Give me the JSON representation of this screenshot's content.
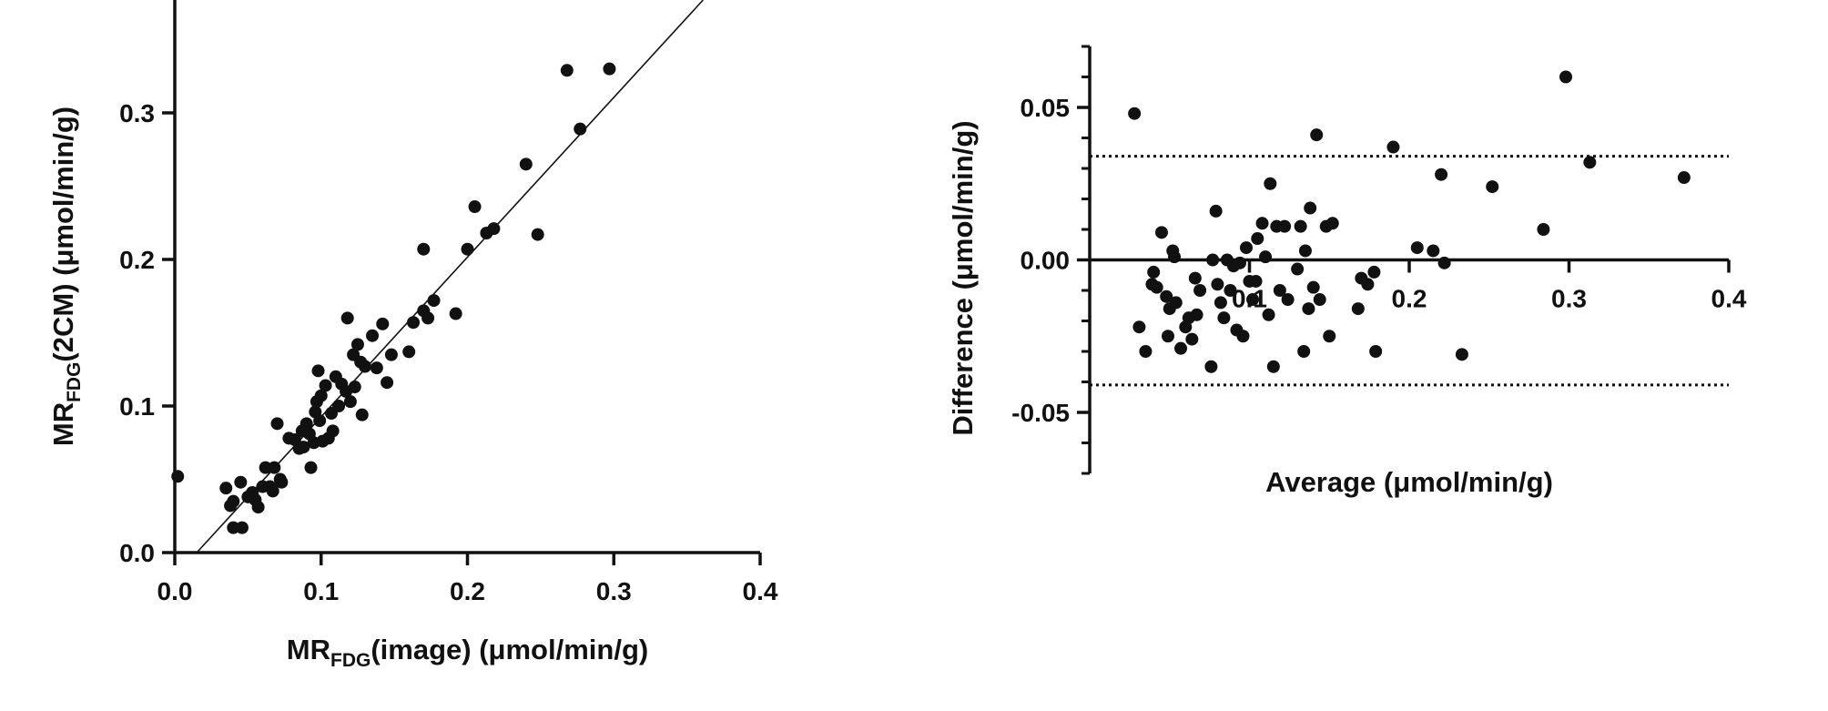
{
  "chart_data": [
    {
      "type": "scatter",
      "xlabel": {
        "main": "MR",
        "sub": "FDG",
        "rest": "(image) (μmol/min/g)"
      },
      "ylabel": {
        "main": "MR",
        "sub": "FDG",
        "rest": "(2CM) (μmol/min/g)"
      },
      "xlim": [
        0,
        0.4
      ],
      "ylim": [
        0,
        0.377
      ],
      "xticks": [
        {
          "value": 0,
          "label": "0.0"
        },
        0.1,
        0.2,
        0.3,
        0.4
      ],
      "yticks": [
        {
          "value": 0,
          "label": "0.0"
        },
        0.1,
        0.2,
        0.3
      ],
      "color": "#111111",
      "fit_line": {
        "x": [
          0.015,
          0.361
        ],
        "y": [
          0,
          0.377
        ]
      },
      "x": [
        0.002,
        0.035,
        0.038,
        0.04,
        0.04,
        0.045,
        0.046,
        0.05,
        0.053,
        0.055,
        0.057,
        0.06,
        0.062,
        0.065,
        0.067,
        0.068,
        0.07,
        0.072,
        0.073,
        0.078,
        0.082,
        0.085,
        0.087,
        0.088,
        0.09,
        0.092,
        0.093,
        0.095,
        0.096,
        0.097,
        0.098,
        0.099,
        0.1,
        0.101,
        0.103,
        0.105,
        0.107,
        0.108,
        0.11,
        0.112,
        0.114,
        0.117,
        0.118,
        0.12,
        0.122,
        0.123,
        0.125,
        0.127,
        0.128,
        0.13,
        0.135,
        0.138,
        0.142,
        0.145,
        0.148,
        0.16,
        0.163,
        0.17,
        0.17,
        0.173,
        0.177,
        0.192,
        0.2,
        0.205,
        0.213,
        0.218,
        0.24,
        0.248,
        0.268,
        0.277,
        0.297
      ],
      "y": [
        0.052,
        0.044,
        0.032,
        0.035,
        0.017,
        0.048,
        0.017,
        0.038,
        0.041,
        0.036,
        0.031,
        0.045,
        0.058,
        0.045,
        0.042,
        0.058,
        0.088,
        0.05,
        0.048,
        0.078,
        0.077,
        0.071,
        0.083,
        0.072,
        0.088,
        0.081,
        0.058,
        0.075,
        0.096,
        0.103,
        0.124,
        0.09,
        0.107,
        0.076,
        0.114,
        0.078,
        0.095,
        0.083,
        0.12,
        0.1,
        0.115,
        0.11,
        0.16,
        0.103,
        0.135,
        0.113,
        0.142,
        0.13,
        0.094,
        0.127,
        0.148,
        0.126,
        0.156,
        0.116,
        0.135,
        0.137,
        0.157,
        0.207,
        0.165,
        0.16,
        0.172,
        0.163,
        0.207,
        0.236,
        0.218,
        0.221,
        0.265,
        0.217,
        0.329,
        0.289,
        0.33
      ]
    },
    {
      "type": "scatter",
      "xlabel": {
        "main": "Average (μmol/min/g)"
      },
      "ylabel": {
        "main": "Difference (μmol/min/g)"
      },
      "xlim": [
        0,
        0.4
      ],
      "ylim": [
        -0.07,
        0.07
      ],
      "xticks": [
        0.1,
        0.2,
        0.3,
        0.4
      ],
      "yticks": [
        -0.05,
        {
          "value": 0,
          "label": "0.00"
        },
        0.05
      ],
      "yminorticks": [
        -0.07,
        -0.06,
        -0.04,
        -0.03,
        -0.02,
        -0.01,
        0.01,
        0.02,
        0.03,
        0.04,
        0.06,
        0.07
      ],
      "reference_lines": [
        0.034,
        -0.041
      ],
      "color": "#111111",
      "x": [
        0.028,
        0.031,
        0.035,
        0.039,
        0.04,
        0.042,
        0.045,
        0.048,
        0.049,
        0.05,
        0.052,
        0.053,
        0.054,
        0.057,
        0.06,
        0.062,
        0.064,
        0.066,
        0.067,
        0.069,
        0.076,
        0.077,
        0.079,
        0.08,
        0.082,
        0.084,
        0.086,
        0.088,
        0.09,
        0.092,
        0.094,
        0.096,
        0.098,
        0.1,
        0.102,
        0.104,
        0.105,
        0.108,
        0.11,
        0.112,
        0.113,
        0.115,
        0.117,
        0.119,
        0.122,
        0.124,
        0.13,
        0.132,
        0.134,
        0.135,
        0.137,
        0.138,
        0.14,
        0.142,
        0.144,
        0.148,
        0.15,
        0.152,
        0.168,
        0.17,
        0.174,
        0.178,
        0.179,
        0.19,
        0.205,
        0.215,
        0.22,
        0.222,
        0.233,
        0.252,
        0.284,
        0.298,
        0.313,
        0.372
      ],
      "y": [
        0.048,
        -0.022,
        -0.03,
        -0.008,
        -0.004,
        -0.009,
        0.009,
        -0.012,
        -0.025,
        -0.016,
        0.003,
        0.001,
        -0.014,
        -0.029,
        -0.022,
        -0.019,
        -0.026,
        -0.006,
        -0.018,
        -0.01,
        -0.035,
        0.0,
        0.016,
        -0.008,
        -0.014,
        -0.019,
        0.0,
        -0.01,
        -0.002,
        -0.023,
        -0.001,
        -0.025,
        0.004,
        -0.007,
        -0.013,
        -0.007,
        0.007,
        0.012,
        0.001,
        -0.018,
        0.025,
        -0.035,
        0.011,
        -0.01,
        0.011,
        -0.013,
        -0.003,
        0.011,
        -0.03,
        0.003,
        -0.016,
        0.017,
        -0.009,
        0.041,
        -0.013,
        0.011,
        -0.025,
        0.012,
        -0.016,
        -0.006,
        -0.008,
        -0.004,
        -0.03,
        0.037,
        0.004,
        0.003,
        0.028,
        -0.001,
        -0.031,
        0.024,
        0.01,
        0.06,
        0.032,
        0.027
      ]
    }
  ]
}
